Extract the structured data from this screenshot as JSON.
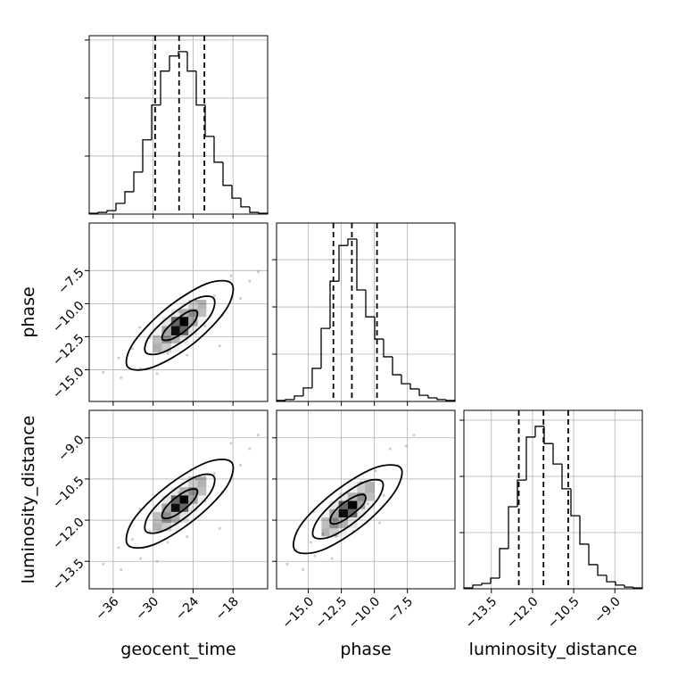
{
  "chart_data": {
    "type": "corner",
    "grid": true,
    "color": "#000000",
    "parameters": [
      {
        "name": "geocent_time",
        "lim": [
          -39.6,
          -12.8
        ],
        "ticks": [
          {
            "value": -36,
            "label": "−36"
          },
          {
            "value": -30,
            "label": "−30"
          },
          {
            "value": -24,
            "label": "−24"
          },
          {
            "value": -18,
            "label": "−18"
          }
        ],
        "hist": {
          "bins": [
            -39.6,
            -38.26,
            -36.92,
            -35.58,
            -34.24,
            -32.9,
            -31.56,
            -30.22,
            -28.88,
            -27.54,
            -26.2,
            -24.86,
            -23.52,
            -22.18,
            -20.84,
            -19.5,
            -18.16,
            -16.82,
            -15.48,
            -14.14,
            -12.8
          ],
          "counts": [
            3,
            6,
            12,
            37,
            77,
            145,
            256,
            376,
            493,
            545,
            560,
            493,
            376,
            268,
            179,
            99,
            55,
            25,
            6,
            3
          ],
          "ylim": [
            0,
            615
          ],
          "yticks": [
            200,
            400,
            600
          ],
          "quantiles": [
            -29.7,
            -26.1,
            -22.3
          ]
        }
      },
      {
        "name": "phase",
        "lim": [
          -17.4,
          -3.9
        ],
        "ticks": [
          {
            "value": -15.0,
            "label": "−15.0"
          },
          {
            "value": -12.5,
            "label": "−12.5"
          },
          {
            "value": -10.0,
            "label": "−10.0"
          },
          {
            "value": -7.5,
            "label": "−7.5"
          }
        ],
        "hist": {
          "bins": [
            -17.4,
            -16.725,
            -16.05,
            -15.375,
            -14.7,
            -14.025,
            -13.35,
            -12.675,
            -12.0,
            -11.325,
            -10.65,
            -9.975,
            -9.3,
            -8.625,
            -7.95,
            -7.275,
            -6.6,
            -5.925,
            -5.25,
            -4.575,
            -3.9
          ],
          "counts": [
            4,
            8,
            23,
            57,
            140,
            309,
            509,
            660,
            687,
            472,
            358,
            264,
            189,
            113,
            75,
            53,
            26,
            15,
            8,
            4
          ],
          "ylim": [
            0,
            755
          ],
          "yticks": [
            200,
            400,
            600
          ],
          "quantiles": [
            -13.1,
            -11.7,
            -9.8
          ]
        }
      },
      {
        "name": "luminosity_distance",
        "lim": [
          -14.5,
          -8.0
        ],
        "ticks": [
          {
            "value": -13.5,
            "label": "−13.5"
          },
          {
            "value": -12.0,
            "label": "−12.0"
          },
          {
            "value": -10.5,
            "label": "−10.5"
          },
          {
            "value": -9.0,
            "label": "−9.0"
          }
        ],
        "hist": {
          "bins": [
            -14.5,
            -14.175,
            -13.85,
            -13.525,
            -13.2,
            -12.875,
            -12.55,
            -12.225,
            -11.9,
            -11.575,
            -11.25,
            -10.925,
            -10.6,
            -10.275,
            -9.95,
            -9.625,
            -9.3,
            -8.975,
            -8.65,
            -8.325,
            -8.0
          ],
          "counts": [
            3,
            13,
            19,
            38,
            143,
            292,
            387,
            540,
            578,
            517,
            444,
            356,
            260,
            159,
            86,
            48,
            25,
            13,
            6,
            3
          ],
          "ylim": [
            0,
            635
          ],
          "yticks": [
            200,
            400,
            600
          ],
          "quantiles": [
            -12.5,
            -11.6,
            -10.7
          ]
        }
      }
    ],
    "pairs": [
      {
        "points": {
          "x": [
            -37.5,
            -35.2,
            -34.8,
            -33.1,
            -31.9,
            -30.5,
            -29.4,
            -27.8,
            -26.1,
            -24.9,
            -23.5,
            -22.2,
            -20.8,
            -19.6,
            -18.3,
            -16.9,
            -15.5,
            -14.2,
            -32.0,
            -20.0
          ],
          "y": [
            -15.2,
            -14.1,
            -15.6,
            -13.4,
            -14.9,
            -12.6,
            -15.3,
            -13.8,
            -10.6,
            -13.9,
            -9.8,
            -11.7,
            -9.4,
            -10.9,
            -7.9,
            -9.6,
            -8.3,
            -7.6,
            -11.8,
            -13.2
          ]
        },
        "hist2d": {
          "xbins": [
            -30.0,
            -28.7,
            -27.3,
            -26.0,
            -24.7,
            -23.3,
            -22.0
          ],
          "ybins": [
            -13.7,
            -13.0,
            -12.4,
            -11.7,
            -11.0,
            -10.4,
            -9.7
          ],
          "counts": [
            [
              30,
              20,
              5,
              0,
              0,
              0
            ],
            [
              25,
              45,
              30,
              10,
              0,
              0
            ],
            [
              5,
              35,
              95,
              60,
              10,
              0
            ],
            [
              0,
              10,
              60,
              100,
              35,
              5
            ],
            [
              0,
              0,
              10,
              30,
              45,
              25
            ],
            [
              0,
              0,
              0,
              5,
              20,
              30
            ]
          ]
        },
        "contours": [
          {
            "x": [
              -18.2,
              -19.0,
              -23.9,
              -30.0,
              -33.8,
              -33.0,
              -28.1,
              -22.0
            ],
            "y": [
              -8.5,
              -10.4,
              -13.0,
              -14.8,
              -14.8,
              -13.0,
              -10.4,
              -8.5
            ]
          },
          {
            "x": [
              -20.9,
              -21.4,
              -24.6,
              -28.6,
              -31.1,
              -30.6,
              -27.4,
              -23.4
            ],
            "y": [
              -9.6,
              -10.9,
              -12.5,
              -13.7,
              -13.7,
              -12.5,
              -10.9,
              -9.6
            ]
          },
          {
            "x": [
              -23.4,
              -23.7,
              -25.3,
              -27.3,
              -28.6,
              -28.3,
              -26.7,
              -24.7
            ],
            "y": [
              -10.6,
              -11.3,
              -12.1,
              -12.7,
              -12.7,
              -12.1,
              -11.3,
              -10.6
            ]
          }
        ]
      },
      {
        "points": {
          "x": [
            -37.5,
            -35.2,
            -34.8,
            -33.1,
            -31.9,
            -30.5,
            -29.4,
            -27.8,
            -26.1,
            -24.9,
            -23.5,
            -22.2,
            -20.8,
            -19.6,
            -18.3,
            -16.9,
            -15.5,
            -14.2,
            -32.0,
            -20.0
          ],
          "y": [
            -13.6,
            -13.0,
            -13.8,
            -12.7,
            -13.4,
            -12.4,
            -13.5,
            -12.8,
            -11.0,
            -12.6,
            -10.5,
            -11.3,
            -10.3,
            -11.0,
            -9.2,
            -10.0,
            -9.4,
            -8.9,
            -11.6,
            -12.3
          ]
        },
        "hist2d": {
          "xbins": [
            -30.0,
            -28.7,
            -27.3,
            -26.0,
            -24.7,
            -23.3,
            -22.0
          ],
          "ybins": [
            -12.4,
            -12.1,
            -11.7,
            -11.4,
            -11.1,
            -10.8,
            -10.4
          ],
          "counts": [
            [
              30,
              20,
              5,
              0,
              0,
              0
            ],
            [
              25,
              45,
              30,
              10,
              0,
              0
            ],
            [
              5,
              35,
              95,
              60,
              10,
              0
            ],
            [
              0,
              10,
              60,
              100,
              35,
              5
            ],
            [
              0,
              0,
              10,
              30,
              45,
              25
            ],
            [
              0,
              0,
              0,
              5,
              20,
              30
            ]
          ]
        },
        "contours": [
          {
            "x": [
              -18.2,
              -19.0,
              -23.9,
              -30.0,
              -33.8,
              -33.0,
              -28.1,
              -22.0
            ],
            "y": [
              -9.9,
              -10.8,
              -12.0,
              -12.9,
              -12.9,
              -12.0,
              -10.8,
              -9.9
            ]
          },
          {
            "x": [
              -20.9,
              -21.4,
              -24.6,
              -28.6,
              -31.1,
              -30.6,
              -27.4,
              -23.4
            ],
            "y": [
              -10.4,
              -11.0,
              -11.8,
              -12.4,
              -12.4,
              -11.8,
              -11.0,
              -10.4
            ]
          },
          {
            "x": [
              -23.4,
              -23.7,
              -25.3,
              -27.3,
              -28.6,
              -28.3,
              -26.7,
              -24.7
            ],
            "y": [
              -10.9,
              -11.2,
              -11.6,
              -11.9,
              -11.9,
              -11.6,
              -11.2,
              -10.9
            ]
          }
        ]
      },
      {
        "points": {
          "x": [
            -16.6,
            -15.9,
            -15.4,
            -14.8,
            -14.5,
            -13.9,
            -13.2,
            -12.9,
            -12.1,
            -11.6,
            -11.0,
            -10.5,
            -9.9,
            -9.3,
            -8.8,
            -8.2,
            -7.6,
            -7.0,
            -14.6,
            -9.6
          ],
          "y": [
            -13.6,
            -13.1,
            -13.8,
            -12.8,
            -13.3,
            -12.5,
            -13.4,
            -12.6,
            -11.0,
            -12.4,
            -10.6,
            -11.4,
            -10.2,
            -11.1,
            -9.4,
            -10.0,
            -9.3,
            -8.9,
            -11.7,
            -12.1
          ]
        },
        "hist2d": {
          "xbins": [
            -14.0,
            -13.4,
            -12.7,
            -12.0,
            -11.3,
            -10.7,
            -10.0
          ],
          "ybins": [
            -12.6,
            -12.3,
            -11.9,
            -11.6,
            -11.3,
            -11.0,
            -10.6
          ],
          "counts": [
            [
              30,
              20,
              5,
              0,
              0,
              0
            ],
            [
              25,
              45,
              30,
              10,
              0,
              0
            ],
            [
              5,
              35,
              95,
              60,
              10,
              0
            ],
            [
              0,
              10,
              60,
              100,
              35,
              5
            ],
            [
              0,
              0,
              10,
              30,
              45,
              25
            ],
            [
              0,
              0,
              0,
              5,
              20,
              30
            ]
          ]
        },
        "contours": [
          {
            "x": [
              -8.0,
              -8.5,
              -10.9,
              -14.0,
              -16.0,
              -15.6,
              -13.1,
              -10.0
            ],
            "y": [
              -10.1,
              -11.0,
              -12.2,
              -13.1,
              -13.1,
              -12.2,
              -11.0,
              -10.1
            ]
          },
          {
            "x": [
              -9.4,
              -9.7,
              -11.3,
              -13.3,
              -14.6,
              -14.3,
              -12.7,
              -10.7
            ],
            "y": [
              -10.6,
              -11.2,
              -12.0,
              -12.6,
              -12.6,
              -12.0,
              -11.2,
              -10.6
            ]
          },
          {
            "x": [
              -10.7,
              -10.8,
              -11.7,
              -12.7,
              -13.3,
              -13.2,
              -12.4,
              -11.3
            ],
            "y": [
              -11.1,
              -11.4,
              -11.8,
              -12.1,
              -12.1,
              -11.8,
              -11.4,
              -11.1
            ]
          }
        ]
      }
    ]
  }
}
